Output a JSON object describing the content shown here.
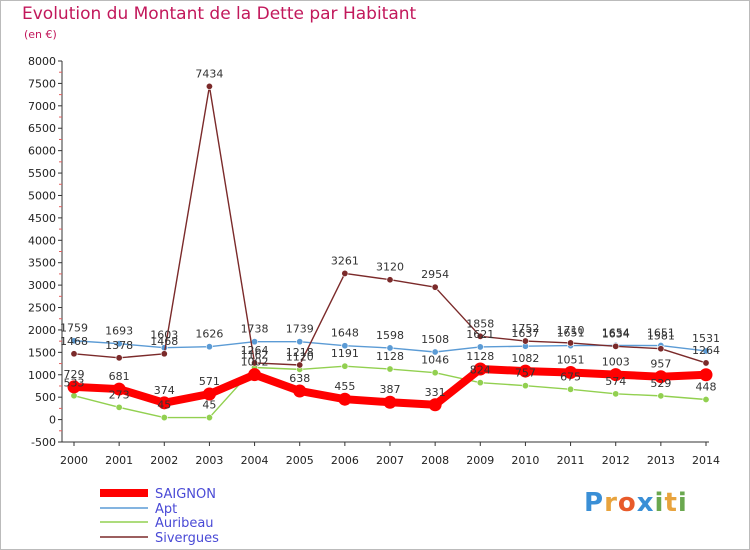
{
  "chart_data": {
    "type": "line",
    "title": "Evolution du Montant de la Dette par Habitant",
    "subtitle": "(en €)",
    "x": [
      "2000",
      "2001",
      "2002",
      "2003",
      "2004",
      "2005",
      "2006",
      "2007",
      "2008",
      "2009",
      "2010",
      "2011",
      "2012",
      "2013",
      "2014"
    ],
    "ylim": [
      -500,
      8000
    ],
    "yticks": [
      -500,
      0,
      500,
      1000,
      1500,
      2000,
      2500,
      3000,
      3500,
      4000,
      4500,
      5000,
      5500,
      6000,
      6500,
      7000,
      7500,
      8000
    ],
    "grid": false,
    "legend": "bottom-left",
    "series": [
      {
        "name": "SAIGNON",
        "color": "#ff0000",
        "values": [
          729,
          681,
          374,
          571,
          1002,
          638,
          455,
          387,
          331,
          1128,
          1082,
          1051,
          1003,
          957,
          1000
        ],
        "labels": [
          "729",
          "681",
          "374",
          "571",
          "1002",
          "638",
          "455",
          "387",
          "331",
          "1128",
          "1082",
          "1051",
          "1003",
          "957",
          ""
        ]
      },
      {
        "name": "Apt",
        "color": "#5b9bd5",
        "values": [
          1759,
          1693,
          1603,
          1626,
          1738,
          1739,
          1648,
          1598,
          1508,
          1621,
          1637,
          1651,
          1654,
          1651,
          1531
        ],
        "labels": [
          "1759",
          "1693",
          "1603",
          "1626",
          "1738",
          "1739",
          "1648",
          "1598",
          "1508",
          "1621",
          "1637",
          "1651",
          "1654",
          "1651",
          "1531"
        ]
      },
      {
        "name": "Auribeau",
        "color": "#92d050",
        "values": [
          533,
          273,
          45,
          45,
          1162,
          1120,
          1191,
          1128,
          1046,
          824,
          757,
          675,
          574,
          529,
          448
        ],
        "labels": [
          "533",
          "273",
          "45",
          "45",
          "1162",
          "1120",
          "1191",
          "1128",
          "1046",
          "824",
          "757",
          "675",
          "574",
          "529",
          "448"
        ]
      },
      {
        "name": "Sivergues",
        "color": "#7b2a2a",
        "values": [
          1468,
          1378,
          1468,
          7434,
          1264,
          1218,
          3261,
          3120,
          2954,
          1858,
          1752,
          1710,
          1634,
          1581,
          1264
        ],
        "labels": [
          "1468",
          "1378",
          "1468",
          "7434",
          "1264",
          "1218",
          "3261",
          "3120",
          "2954",
          "1858",
          "1752",
          "1710",
          "1634",
          "1581",
          "1264"
        ]
      }
    ]
  },
  "logo": {
    "text": "Proxiti",
    "letters": [
      "P",
      "r",
      "o",
      "x",
      "i",
      "t",
      "i"
    ],
    "colors": [
      "#3a8fd6",
      "#e8a33d",
      "#e85a2a",
      "#3a8fd6",
      "#6aa84f",
      "#e8a33d",
      "#6aa84f"
    ]
  }
}
